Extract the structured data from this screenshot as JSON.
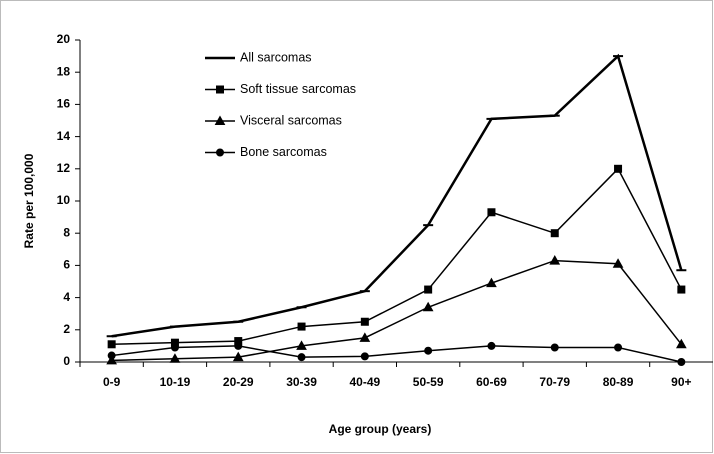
{
  "chart_data": {
    "type": "line",
    "categories": [
      "0-9",
      "10-19",
      "20-29",
      "30-39",
      "40-49",
      "50-59",
      "60-69",
      "70-79",
      "80-89",
      "90+"
    ],
    "series": [
      {
        "name": "All sarcomas",
        "color": "#000000",
        "marker": "dash",
        "values": [
          1.6,
          2.2,
          2.5,
          3.4,
          4.4,
          8.5,
          15.1,
          15.3,
          19.0,
          5.7
        ]
      },
      {
        "name": "Soft tissue sarcomas",
        "color": "#000000",
        "marker": "square",
        "values": [
          1.1,
          1.2,
          1.3,
          2.2,
          2.5,
          4.5,
          9.3,
          8.0,
          12.0,
          4.5
        ]
      },
      {
        "name": "Visceral sarcomas",
        "color": "#000000",
        "marker": "triangle",
        "values": [
          0.1,
          0.2,
          0.3,
          1.0,
          1.5,
          3.4,
          4.9,
          6.3,
          6.1,
          1.1
        ]
      },
      {
        "name": "Bone sarcomas",
        "color": "#000000",
        "marker": "circle",
        "values": [
          0.4,
          0.9,
          1.0,
          0.3,
          0.35,
          0.7,
          1.0,
          0.9,
          0.9,
          0.0
        ]
      }
    ],
    "xlabel": "Age group (years)",
    "ylabel": "Rate per 100,000",
    "ylim": [
      0,
      20
    ],
    "yticks": [
      0,
      2,
      4,
      6,
      8,
      10,
      12,
      14,
      16,
      18,
      20
    ],
    "grid": false,
    "legend": "upper left"
  }
}
